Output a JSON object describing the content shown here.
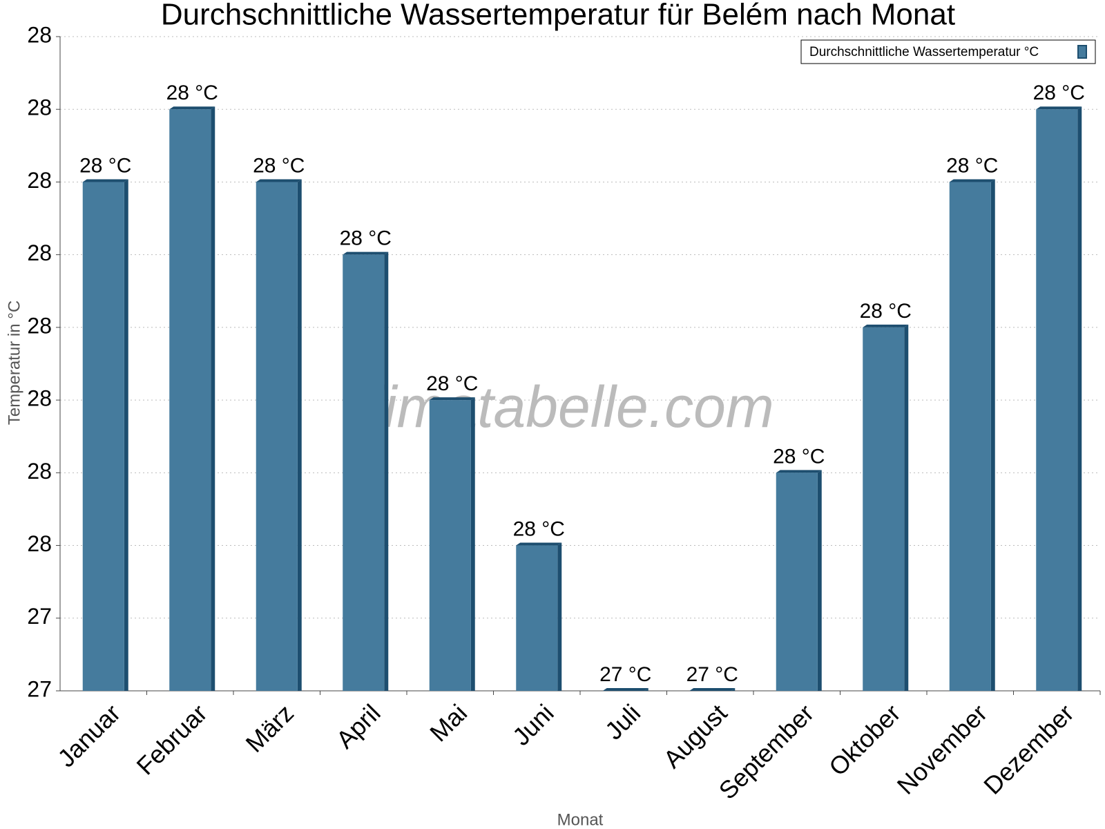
{
  "chart_data": {
    "type": "bar",
    "title": "Durchschnittliche Wassertemperatur für Belém nach Monat",
    "x_label": "Monat",
    "y_label": "Temperatur in °C",
    "watermark": "klimatabelle.com",
    "legend_position": "top-right",
    "categories": [
      "Januar",
      "Februar",
      "März",
      "April",
      "Mai",
      "Juni",
      "Juli",
      "August",
      "September",
      "Oktober",
      "November",
      "Dezember"
    ],
    "series": [
      {
        "name": "Durchschnittliche Wassertemperatur °C",
        "color": "#457b9d",
        "values": [
          28.0,
          28.1,
          28.0,
          27.9,
          27.7,
          27.5,
          27.3,
          27.3,
          27.6,
          27.8,
          28.0,
          28.1
        ],
        "value_labels": [
          "28 °C",
          "28 °C",
          "28 °C",
          "28 °C",
          "28 °C",
          "28 °C",
          "27 °C",
          "27 °C",
          "28 °C",
          "28 °C",
          "28 °C",
          "28 °C"
        ]
      }
    ],
    "ylim": [
      27.3,
      28.2
    ],
    "yticks": [
      {
        "value": 27.3,
        "label": "27"
      },
      {
        "value": 27.4,
        "label": "27"
      },
      {
        "value": 27.5,
        "label": "28"
      },
      {
        "value": 27.6,
        "label": "28"
      },
      {
        "value": 27.7,
        "label": "28"
      },
      {
        "value": 27.8,
        "label": "28"
      },
      {
        "value": 27.9,
        "label": "28"
      },
      {
        "value": 28.0,
        "label": "28"
      },
      {
        "value": 28.1,
        "label": "28"
      },
      {
        "value": 28.2,
        "label": "28"
      }
    ],
    "grid": true
  }
}
